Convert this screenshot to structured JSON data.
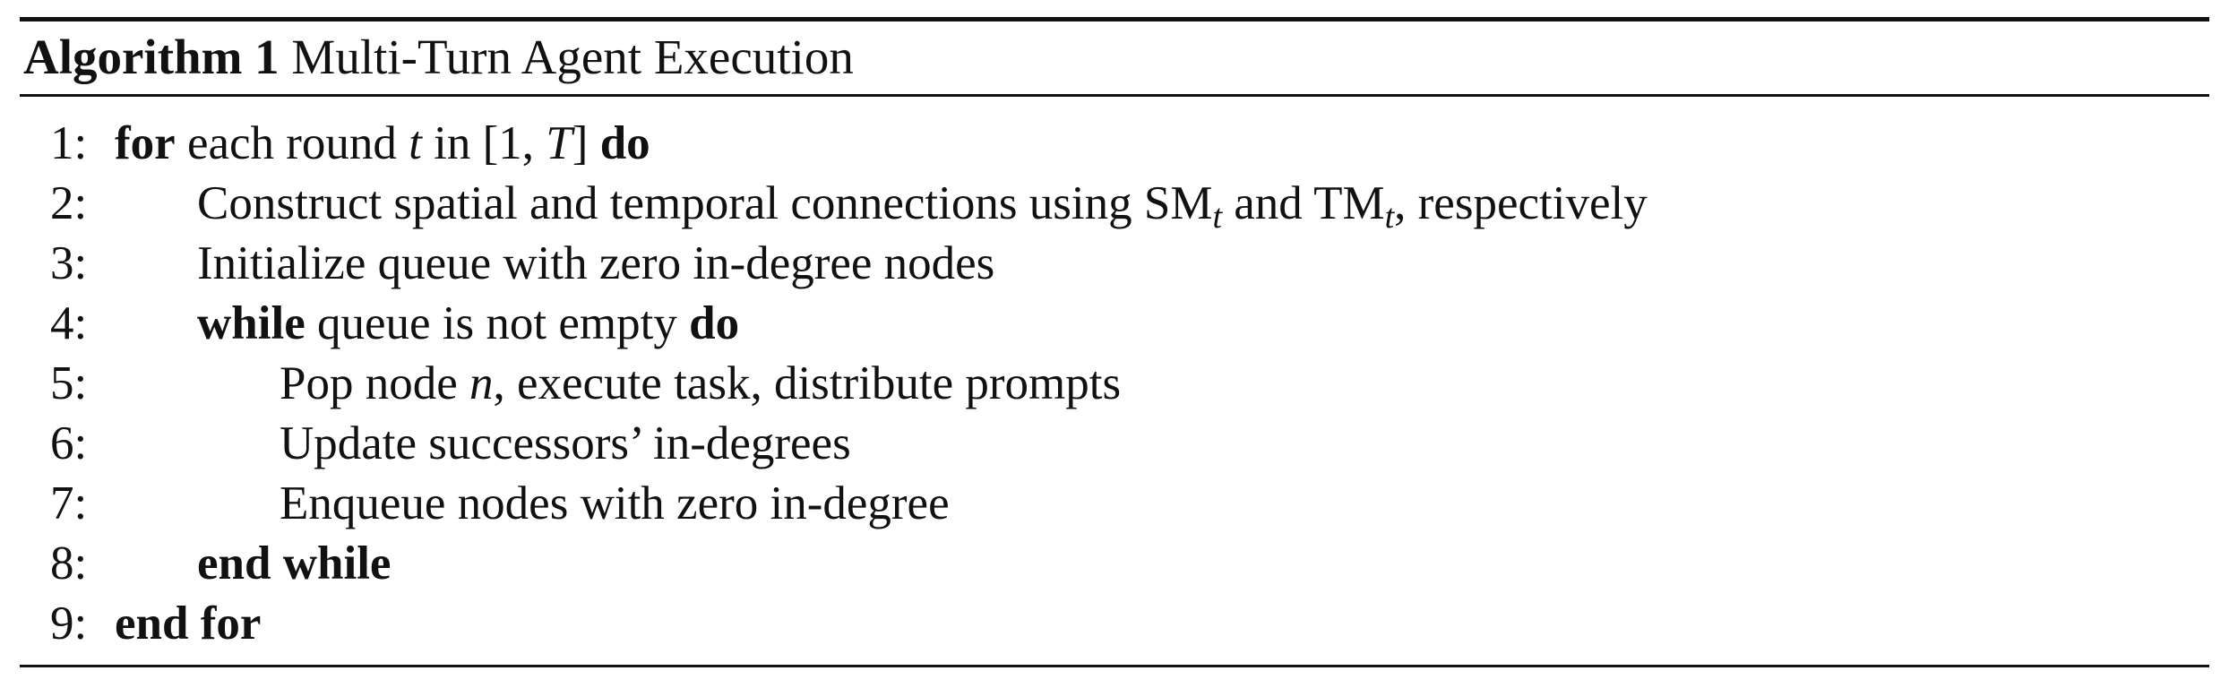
{
  "algorithm": {
    "label": "Algorithm 1",
    "title": "Multi-Turn Agent Execution"
  },
  "steps": [
    {
      "num": "1:",
      "parts": [
        [
          "kw",
          "for"
        ],
        [
          "t",
          " each round "
        ],
        [
          "m",
          "t"
        ],
        [
          "t",
          " in "
        ],
        [
          "t",
          "[1, "
        ],
        [
          "m",
          "T"
        ],
        [
          "t",
          "] "
        ],
        [
          "kw",
          "do"
        ]
      ]
    },
    {
      "num": "2:",
      "parts": [
        [
          "t",
          "Construct spatial and temporal connections using SM"
        ],
        [
          "sub",
          "t"
        ],
        [
          "t",
          " and TM"
        ],
        [
          "sub",
          "t"
        ],
        [
          "t",
          ", respectively"
        ]
      ]
    },
    {
      "num": "3:",
      "parts": [
        [
          "t",
          "Initialize queue with zero in-degree nodes"
        ]
      ]
    },
    {
      "num": "4:",
      "parts": [
        [
          "kw",
          "while"
        ],
        [
          "t",
          " queue is not empty "
        ],
        [
          "kw",
          "do"
        ]
      ]
    },
    {
      "num": "5:",
      "parts": [
        [
          "t",
          "Pop node "
        ],
        [
          "m",
          "n"
        ],
        [
          "t",
          ", execute task, distribute prompts"
        ]
      ]
    },
    {
      "num": "6:",
      "parts": [
        [
          "t",
          "Update successors’ in-degrees"
        ]
      ]
    },
    {
      "num": "7:",
      "parts": [
        [
          "t",
          "Enqueue nodes with zero in-degree"
        ]
      ]
    },
    {
      "num": "8:",
      "parts": [
        [
          "kw",
          "end while"
        ]
      ]
    },
    {
      "num": "9:",
      "parts": [
        [
          "kw",
          "end for"
        ]
      ]
    }
  ]
}
